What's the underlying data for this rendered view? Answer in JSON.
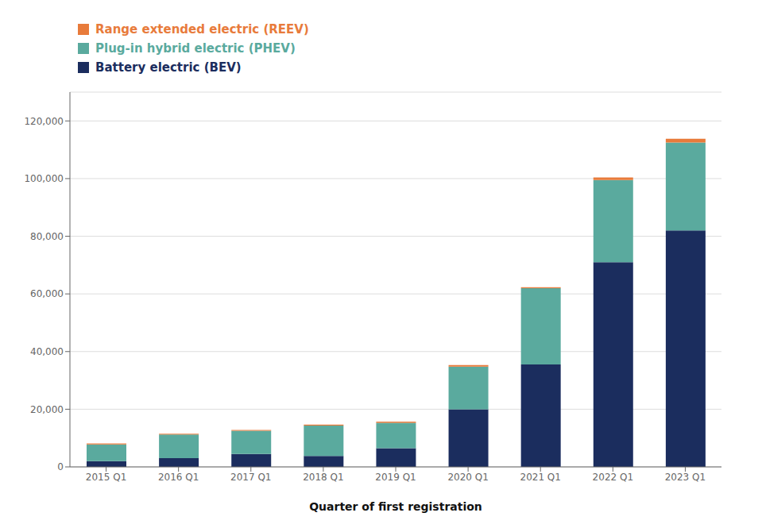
{
  "chart_data": {
    "type": "bar",
    "stacked": true,
    "categories": [
      "2015 Q1",
      "2016 Q1",
      "2017 Q1",
      "2018 Q1",
      "2019 Q1",
      "2020 Q1",
      "2021 Q1",
      "2022 Q1",
      "2023 Q1"
    ],
    "series": [
      {
        "name": "Battery electric (BEV)",
        "color": "#1b2d5e",
        "values": [
          2000,
          3000,
          4500,
          3800,
          6500,
          20000,
          35500,
          71000,
          82000
        ]
      },
      {
        "name": "Plug-in hybrid electric (PHEV)",
        "color": "#5aaa9e",
        "values": [
          5800,
          8200,
          8000,
          10500,
          8800,
          14800,
          26500,
          28500,
          30500
        ]
      },
      {
        "name": "Range extended electric (REEV)",
        "color": "#e87b3b",
        "values": [
          300,
          300,
          300,
          400,
          400,
          500,
          300,
          900,
          1300
        ]
      }
    ],
    "xlabel": "Quarter of first registration",
    "ylim": [
      0,
      130000
    ],
    "yticks": [
      0,
      {
        "value": 20000,
        "label": "20,000"
      },
      {
        "value": 40000,
        "label": "40,000"
      },
      {
        "value": 60000,
        "label": "60,000"
      },
      {
        "value": 80000,
        "label": "80,000"
      },
      {
        "value": 100000,
        "label": "100,000"
      },
      {
        "value": 120000,
        "label": "120,000"
      }
    ],
    "grid": true,
    "legend": "upper left"
  }
}
